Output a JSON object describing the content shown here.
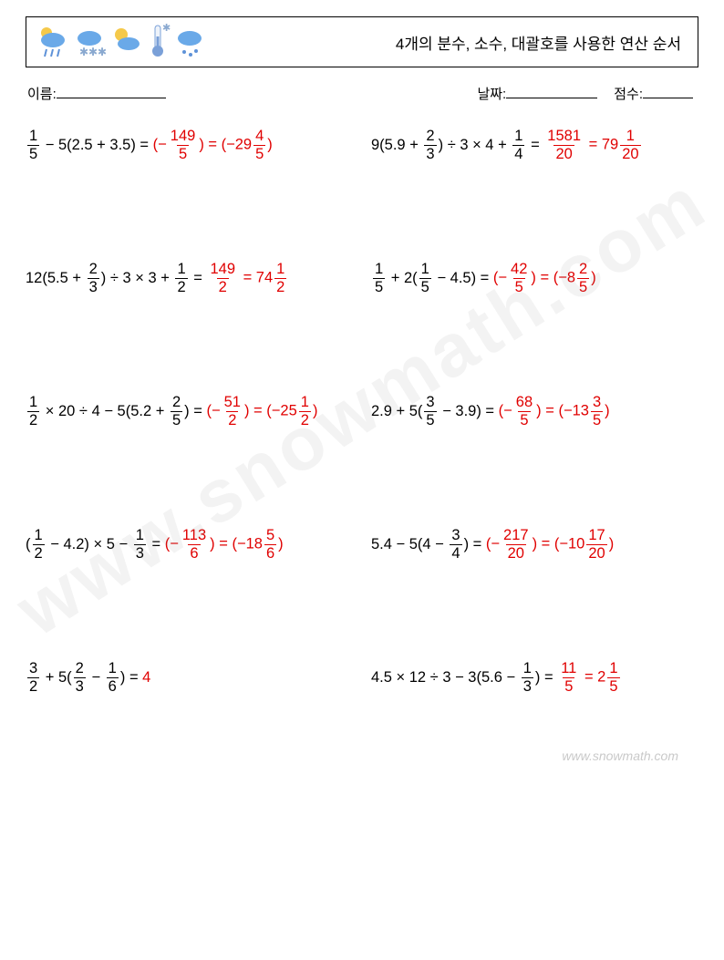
{
  "header": {
    "title": "4개의 분수, 소수, 대괄호를 사용한 연산 순서",
    "icon_colors": {
      "cloud": "#6aa9e8",
      "sun": "#f5c94a",
      "therm": "#7aa0d8",
      "drop": "#5e92d8",
      "snow": "#8aa9d0"
    }
  },
  "meta": {
    "name_label": "이름:",
    "date_label": "날짜:",
    "score_label": "점수:",
    "name_line_width": 120,
    "date_line_width": 100,
    "score_line_width": 55
  },
  "answer_color": "#e00000",
  "problems": [
    {
      "expr": [
        {
          "t": "frac",
          "n": "1",
          "d": "5"
        },
        {
          "t": "txt",
          "v": " − 5(2.5 + 3.5) = "
        },
        {
          "t": "ans",
          "parts": [
            {
              "t": "txt",
              "v": "(−"
            },
            {
              "t": "frac",
              "n": "149",
              "d": "5"
            },
            {
              "t": "txt",
              "v": ") = (−29"
            },
            {
              "t": "frac",
              "n": "4",
              "d": "5"
            },
            {
              "t": "txt",
              "v": ")"
            }
          ]
        }
      ]
    },
    {
      "expr": [
        {
          "t": "txt",
          "v": "9(5.9 + "
        },
        {
          "t": "frac",
          "n": "2",
          "d": "3"
        },
        {
          "t": "txt",
          "v": ") ÷ 3 × 4 + "
        },
        {
          "t": "frac",
          "n": "1",
          "d": "4"
        },
        {
          "t": "txt",
          "v": " = "
        },
        {
          "t": "ans",
          "parts": [
            {
              "t": "frac",
              "n": "1581",
              "d": "20"
            },
            {
              "t": "txt",
              "v": " = 79"
            },
            {
              "t": "frac",
              "n": "1",
              "d": "20"
            }
          ]
        }
      ]
    },
    {
      "expr": [
        {
          "t": "txt",
          "v": "12(5.5 + "
        },
        {
          "t": "frac",
          "n": "2",
          "d": "3"
        },
        {
          "t": "txt",
          "v": ") ÷ 3 × 3 + "
        },
        {
          "t": "frac",
          "n": "1",
          "d": "2"
        },
        {
          "t": "txt",
          "v": " = "
        },
        {
          "t": "ans",
          "parts": [
            {
              "t": "frac",
              "n": "149",
              "d": "2"
            },
            {
              "t": "txt",
              "v": " = 74"
            },
            {
              "t": "frac",
              "n": "1",
              "d": "2"
            }
          ]
        }
      ]
    },
    {
      "expr": [
        {
          "t": "frac",
          "n": "1",
          "d": "5"
        },
        {
          "t": "txt",
          "v": " + 2("
        },
        {
          "t": "frac",
          "n": "1",
          "d": "5"
        },
        {
          "t": "txt",
          "v": " − 4.5) = "
        },
        {
          "t": "ans",
          "parts": [
            {
              "t": "txt",
              "v": "(−"
            },
            {
              "t": "frac",
              "n": "42",
              "d": "5"
            },
            {
              "t": "txt",
              "v": ") = (−8"
            },
            {
              "t": "frac",
              "n": "2",
              "d": "5"
            },
            {
              "t": "txt",
              "v": ")"
            }
          ]
        }
      ]
    },
    {
      "expr": [
        {
          "t": "frac",
          "n": "1",
          "d": "2"
        },
        {
          "t": "txt",
          "v": " × 20 ÷ 4 − 5(5.2 + "
        },
        {
          "t": "frac",
          "n": "2",
          "d": "5"
        },
        {
          "t": "txt",
          "v": ") = "
        },
        {
          "t": "ans",
          "parts": [
            {
              "t": "txt",
              "v": "(−"
            },
            {
              "t": "frac",
              "n": "51",
              "d": "2"
            },
            {
              "t": "txt",
              "v": ") = (−25"
            },
            {
              "t": "frac",
              "n": "1",
              "d": "2"
            },
            {
              "t": "txt",
              "v": ")"
            }
          ]
        }
      ]
    },
    {
      "expr": [
        {
          "t": "txt",
          "v": "2.9 + 5("
        },
        {
          "t": "frac",
          "n": "3",
          "d": "5"
        },
        {
          "t": "txt",
          "v": " − 3.9) = "
        },
        {
          "t": "ans",
          "parts": [
            {
              "t": "txt",
              "v": "(−"
            },
            {
              "t": "frac",
              "n": "68",
              "d": "5"
            },
            {
              "t": "txt",
              "v": ") = (−13"
            },
            {
              "t": "frac",
              "n": "3",
              "d": "5"
            },
            {
              "t": "txt",
              "v": ")"
            }
          ]
        }
      ]
    },
    {
      "expr": [
        {
          "t": "txt",
          "v": "("
        },
        {
          "t": "frac",
          "n": "1",
          "d": "2"
        },
        {
          "t": "txt",
          "v": " − 4.2) × 5 − "
        },
        {
          "t": "frac",
          "n": "1",
          "d": "3"
        },
        {
          "t": "txt",
          "v": " = "
        },
        {
          "t": "ans",
          "parts": [
            {
              "t": "txt",
              "v": "(−"
            },
            {
              "t": "frac",
              "n": "113",
              "d": "6"
            },
            {
              "t": "txt",
              "v": ") = (−18"
            },
            {
              "t": "frac",
              "n": "5",
              "d": "6"
            },
            {
              "t": "txt",
              "v": ")"
            }
          ]
        }
      ]
    },
    {
      "expr": [
        {
          "t": "txt",
          "v": "5.4 − 5(4 − "
        },
        {
          "t": "frac",
          "n": "3",
          "d": "4"
        },
        {
          "t": "txt",
          "v": ") = "
        },
        {
          "t": "ans",
          "parts": [
            {
              "t": "txt",
              "v": "(−"
            },
            {
              "t": "frac",
              "n": "217",
              "d": "20"
            },
            {
              "t": "txt",
              "v": ") = (−10"
            },
            {
              "t": "frac",
              "n": "17",
              "d": "20"
            },
            {
              "t": "txt",
              "v": ")"
            }
          ]
        }
      ]
    },
    {
      "expr": [
        {
          "t": "frac",
          "n": "3",
          "d": "2"
        },
        {
          "t": "txt",
          "v": " + 5("
        },
        {
          "t": "frac",
          "n": "2",
          "d": "3"
        },
        {
          "t": "txt",
          "v": " − "
        },
        {
          "t": "frac",
          "n": "1",
          "d": "6"
        },
        {
          "t": "txt",
          "v": ") = "
        },
        {
          "t": "ans",
          "parts": [
            {
              "t": "txt",
              "v": "4"
            }
          ]
        }
      ]
    },
    {
      "expr": [
        {
          "t": "txt",
          "v": "4.5 × 12 ÷ 3 − 3(5.6 − "
        },
        {
          "t": "frac",
          "n": "1",
          "d": "3"
        },
        {
          "t": "txt",
          "v": ") = "
        },
        {
          "t": "ans",
          "parts": [
            {
              "t": "frac",
              "n": "11",
              "d": "5"
            },
            {
              "t": "txt",
              "v": " = 2"
            },
            {
              "t": "frac",
              "n": "1",
              "d": "5"
            }
          ]
        }
      ]
    }
  ],
  "watermark": "www.snowmath.com",
  "footer": "www.snowmath.com"
}
